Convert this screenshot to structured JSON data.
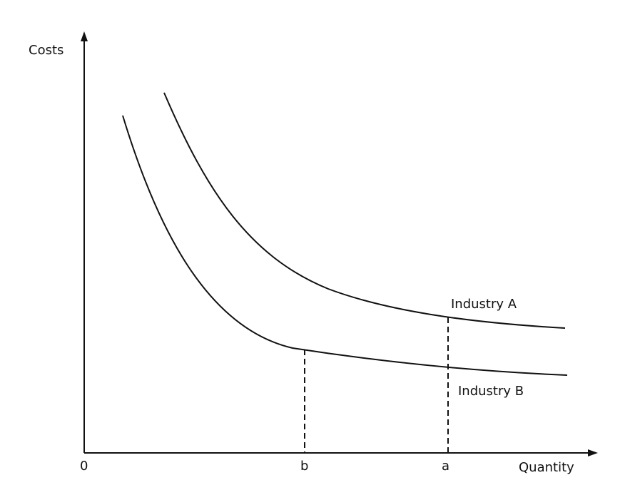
{
  "axes": {
    "y_label": "Costs",
    "x_label": "Quantity",
    "origin": "0"
  },
  "markers": [
    "b",
    "a"
  ],
  "curves": [
    "Industry A",
    "Industry B"
  ]
}
